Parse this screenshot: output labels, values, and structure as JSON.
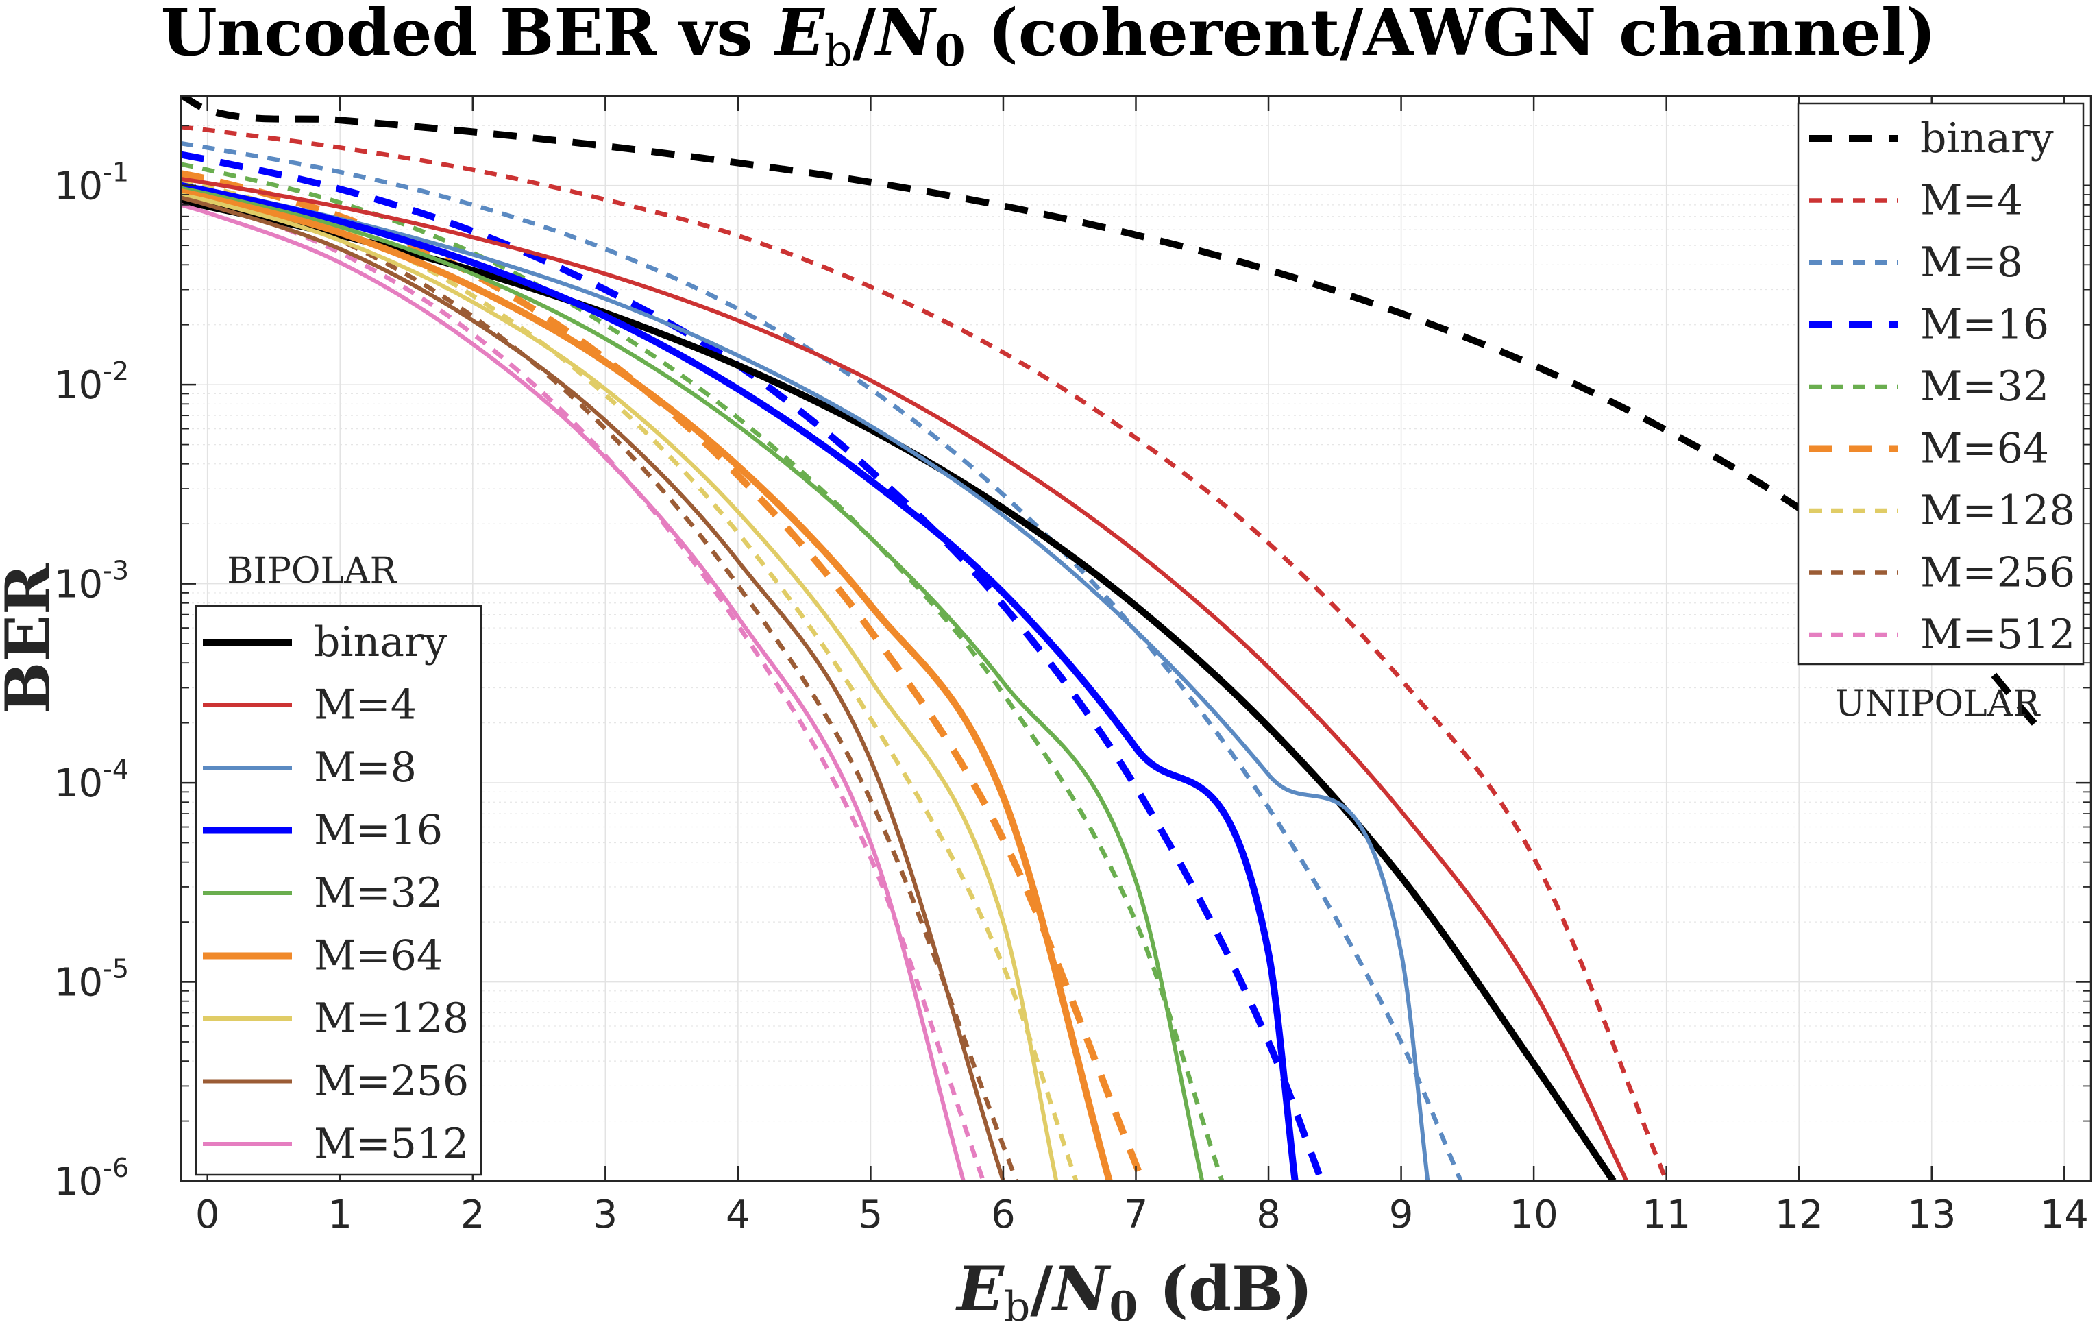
{
  "chart_data": {
    "type": "line",
    "title_parts": {
      "before": "Uncoded BER vs ",
      "eb_E": "E",
      "eb_sub": "b",
      "slash": "/",
      "n0_N": "N",
      "n0_sub": "0",
      "after": " (coherent/AWGN channel)"
    },
    "xlabel_parts": {
      "eb_E": "E",
      "eb_sub": "b",
      "slash": "/",
      "n0_N": "N",
      "n0_sub": "0",
      "after": " (dB)"
    },
    "ylabel": "BER",
    "xlim": [
      -0.2,
      14.2
    ],
    "ylim_log10": [
      -6,
      -0.55
    ],
    "x_ticks": [
      "0",
      "1",
      "2",
      "3",
      "4",
      "5",
      "6",
      "7",
      "8",
      "9",
      "10",
      "11",
      "12",
      "13",
      "14"
    ],
    "y_ticks": [
      {
        "base": "10",
        "exp": "-1",
        "log": -1
      },
      {
        "base": "10",
        "exp": "-2",
        "log": -2
      },
      {
        "base": "10",
        "exp": "-3",
        "log": -3
      },
      {
        "base": "10",
        "exp": "-4",
        "log": -4
      },
      {
        "base": "10",
        "exp": "-5",
        "log": -5
      },
      {
        "base": "10",
        "exp": "-6",
        "log": -6
      }
    ],
    "grid": true,
    "bipolar_legend": {
      "title": "BIPOLAR",
      "placement": "bottom-left",
      "entries": [
        "binary",
        "M=4",
        "M=8",
        "M=16",
        "M=32",
        "M=64",
        "M=128",
        "M=256",
        "M=512"
      ]
    },
    "unipolar_legend": {
      "title": "UNIPOLAR",
      "placement": "top-right",
      "entries": [
        "binary",
        "M=4",
        "M=8",
        "M=16",
        "M=32",
        "M=64",
        "M=128",
        "M=256",
        "M=512"
      ]
    },
    "series": [
      {
        "name": "binary",
        "family": "bipolar",
        "color": "#000000",
        "style": "solid",
        "bold": true,
        "x": [
          -0.2,
          0,
          1,
          2,
          3,
          4,
          5,
          6,
          7,
          8,
          9,
          10,
          10.6
        ],
        "y": [
          0.084,
          0.0786,
          0.0563,
          0.0375,
          0.0229,
          0.0125,
          0.00595,
          0.00239,
          0.000773,
          0.000191,
          3.36e-05,
          3.87e-06,
          1e-06
        ]
      },
      {
        "name": "M=4",
        "family": "bipolar",
        "color": "#cc3333",
        "style": "solid",
        "bold": false,
        "x": [
          -0.2,
          0,
          1,
          2,
          3,
          4,
          5,
          6,
          7,
          8,
          9,
          10,
          10.7
        ],
        "y": [
          0.108,
          0.103,
          0.078,
          0.055,
          0.036,
          0.021,
          0.0105,
          0.0043,
          0.00145,
          0.00038,
          7.2e-05,
          9e-06,
          1e-06
        ]
      },
      {
        "name": "M=8",
        "family": "bipolar",
        "color": "#5b8ac2",
        "style": "solid",
        "bold": false,
        "x": [
          -0.2,
          0,
          1,
          2,
          3,
          4,
          5,
          6,
          7,
          8,
          9,
          9.2
        ],
        "y": [
          0.1,
          0.095,
          0.068,
          0.045,
          0.027,
          0.014,
          0.0062,
          0.0022,
          0.00058,
          0.00011,
          1.4e-05,
          1e-06
        ]
      },
      {
        "name": "M=16",
        "family": "bipolar",
        "color": "#0000ff",
        "style": "solid",
        "bold": true,
        "x": [
          -0.2,
          0,
          1,
          2,
          3,
          4,
          5,
          6,
          7,
          8,
          8.2
        ],
        "y": [
          0.1,
          0.094,
          0.066,
          0.041,
          0.022,
          0.0095,
          0.0033,
          0.0009,
          0.00015,
          1.4e-05,
          1e-06
        ]
      },
      {
        "name": "M=32",
        "family": "bipolar",
        "color": "#6aae4f",
        "style": "solid",
        "bold": false,
        "x": [
          -0.2,
          0,
          1,
          2,
          3,
          4,
          5,
          6,
          7,
          7.5
        ],
        "y": [
          0.097,
          0.091,
          0.062,
          0.036,
          0.017,
          0.0062,
          0.0017,
          0.00032,
          3.2e-05,
          1e-06
        ]
      },
      {
        "name": "M=64",
        "family": "bipolar",
        "color": "#f0892a",
        "style": "solid",
        "bold": true,
        "x": [
          -0.2,
          0,
          1,
          2,
          3,
          4,
          5,
          6,
          6.8
        ],
        "y": [
          0.093,
          0.087,
          0.058,
          0.031,
          0.013,
          0.0039,
          0.00078,
          8.5e-05,
          1e-06
        ]
      },
      {
        "name": "M=128",
        "family": "bipolar",
        "color": "#e0cc66",
        "style": "solid",
        "bold": false,
        "x": [
          -0.2,
          0,
          1,
          2,
          3,
          4,
          5,
          6,
          6.4
        ],
        "y": [
          0.09,
          0.084,
          0.053,
          0.026,
          0.0095,
          0.0023,
          0.00033,
          2e-05,
          1e-06
        ]
      },
      {
        "name": "M=256",
        "family": "bipolar",
        "color": "#9b5c35",
        "style": "solid",
        "bold": false,
        "x": [
          -0.2,
          0,
          1,
          2,
          3,
          4,
          5,
          6
        ],
        "y": [
          0.087,
          0.08,
          0.048,
          0.021,
          0.0066,
          0.0013,
          0.00013,
          1e-06
        ]
      },
      {
        "name": "M=512",
        "family": "bipolar",
        "color": "#e57ec0",
        "style": "solid",
        "bold": false,
        "x": [
          -0.2,
          0,
          1,
          2,
          3,
          4,
          5,
          5.7
        ],
        "y": [
          0.08,
          0.073,
          0.041,
          0.016,
          0.0043,
          0.00068,
          5e-05,
          1e-06
        ]
      },
      {
        "name": "binary",
        "family": "unipolar",
        "color": "#000000",
        "style": "dashed",
        "bold": true,
        "x": [
          -0.2,
          0,
          1,
          2,
          3,
          4,
          5,
          6,
          7,
          8,
          9,
          10,
          11,
          12,
          13,
          13.8
        ],
        "y": [
          0.285,
          0.24,
          0.213,
          0.186,
          0.158,
          0.13,
          0.104,
          0.079,
          0.0565,
          0.0377,
          0.0228,
          0.0125,
          0.0059,
          0.0024,
          0.00077,
          0.00019
        ]
      },
      {
        "name": "M=4",
        "family": "unipolar",
        "color": "#cc3333",
        "style": "dashed",
        "bold": false,
        "x": [
          -0.2,
          0,
          1,
          2,
          3,
          4,
          5,
          6,
          7,
          8,
          9,
          10,
          11
        ],
        "y": [
          0.197,
          0.19,
          0.155,
          0.12,
          0.085,
          0.056,
          0.031,
          0.0145,
          0.0054,
          0.0016,
          0.00033,
          4.2e-05,
          1e-06
        ]
      },
      {
        "name": "M=8",
        "family": "unipolar",
        "color": "#5b8ac2",
        "style": "dashed",
        "bold": false,
        "x": [
          -0.2,
          0,
          1,
          2,
          3,
          4,
          5,
          6,
          7,
          8,
          9,
          9.45
        ],
        "y": [
          0.163,
          0.155,
          0.117,
          0.08,
          0.048,
          0.024,
          0.0095,
          0.0028,
          0.00058,
          7.5e-05,
          5e-06,
          1e-06
        ]
      },
      {
        "name": "M=16",
        "family": "unipolar",
        "color": "#0000ff",
        "style": "dashed",
        "bold": true,
        "x": [
          -0.2,
          0,
          1,
          2,
          3,
          4,
          5,
          6,
          7,
          8,
          8.4
        ],
        "y": [
          0.143,
          0.135,
          0.096,
          0.059,
          0.03,
          0.0125,
          0.0037,
          0.00078,
          9.5e-05,
          5e-06,
          1e-06
        ]
      },
      {
        "name": "M=32",
        "family": "unipolar",
        "color": "#6aae4f",
        "style": "dashed",
        "bold": false,
        "x": [
          -0.2,
          0,
          1,
          2,
          3,
          4,
          5,
          6,
          7,
          7.65
        ],
        "y": [
          0.128,
          0.12,
          0.082,
          0.046,
          0.02,
          0.0068,
          0.0017,
          0.00028,
          2e-05,
          1e-06
        ]
      },
      {
        "name": "M=64",
        "family": "unipolar",
        "color": "#f0892a",
        "style": "dashed",
        "bold": true,
        "x": [
          -0.2,
          0,
          1,
          2,
          3,
          4,
          5,
          6,
          7.05
        ],
        "y": [
          0.115,
          0.108,
          0.07,
          0.036,
          0.0135,
          0.0035,
          0.00058,
          5.2e-05,
          1e-06
        ]
      },
      {
        "name": "M=128",
        "family": "unipolar",
        "color": "#e0cc66",
        "style": "dashed",
        "bold": false,
        "x": [
          -0.2,
          0,
          1,
          2,
          3,
          4,
          5,
          6,
          6.55
        ],
        "y": [
          0.106,
          0.099,
          0.061,
          0.028,
          0.0089,
          0.0018,
          0.00021,
          1.2e-05,
          1e-06
        ]
      },
      {
        "name": "M=256",
        "family": "unipolar",
        "color": "#9b5c35",
        "style": "dashed",
        "bold": false,
        "x": [
          -0.2,
          0,
          1,
          2,
          3,
          4,
          5,
          6.1
        ],
        "y": [
          0.098,
          0.091,
          0.053,
          0.022,
          0.006,
          0.00098,
          8.2e-05,
          1e-06
        ]
      },
      {
        "name": "M=512",
        "family": "unipolar",
        "color": "#e57ec0",
        "style": "dashed",
        "bold": false,
        "x": [
          -0.2,
          0,
          1,
          2,
          3,
          4,
          5,
          5.85
        ],
        "y": [
          0.088,
          0.082,
          0.046,
          0.018,
          0.0044,
          0.00062,
          4.2e-05,
          1e-06
        ]
      }
    ]
  }
}
